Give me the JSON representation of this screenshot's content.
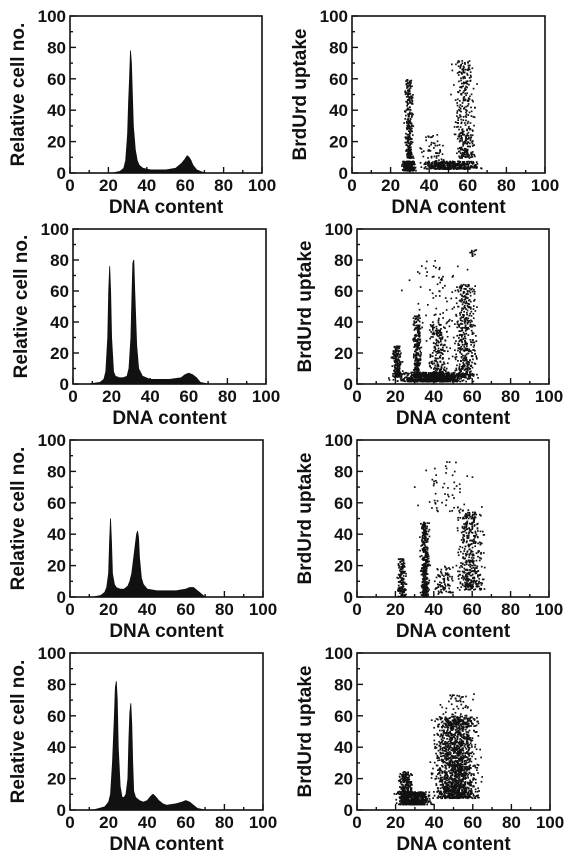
{
  "colors": {
    "ink": "#111111",
    "background": "#ffffff"
  },
  "chart_data": [
    {
      "panel": "row1-histogram",
      "type": "area",
      "xlabel": "DNA content",
      "ylabel": "Relative cell no.",
      "xlim": [
        0,
        100
      ],
      "ylim": [
        0,
        100
      ],
      "xticks": [
        "0",
        "20",
        "40",
        "60",
        "80",
        "100"
      ],
      "yticks": [
        "0",
        "20",
        "40",
        "60",
        "80",
        "100"
      ],
      "series": [
        {
          "x": [
            0,
            10,
            22,
            26,
            28,
            29,
            30,
            30.5,
            31,
            31.5,
            32,
            32.5,
            33,
            34,
            35,
            36,
            38,
            42,
            50,
            55,
            58,
            60,
            61,
            62,
            63,
            64,
            66,
            70,
            80,
            100
          ],
          "values": [
            0,
            0,
            0,
            1,
            3,
            8,
            25,
            45,
            60,
            78,
            70,
            50,
            30,
            15,
            8,
            5,
            3,
            2,
            2,
            3,
            6,
            9,
            11,
            10,
            8,
            5,
            2,
            0,
            0,
            0
          ]
        }
      ]
    },
    {
      "panel": "row1-scatter",
      "type": "scatter",
      "xlabel": "DNA content",
      "ylabel": "BrdUrd uptake",
      "xlim": [
        0,
        100
      ],
      "ylim": [
        0,
        100
      ],
      "xticks": [
        "0",
        "20",
        "40",
        "60",
        "80",
        "100"
      ],
      "yticks": [
        "0",
        "20",
        "40",
        "60",
        "80",
        "100"
      ],
      "clusters": [
        {
          "x": [
            25,
            33
          ],
          "y": [
            2,
            8
          ],
          "n": 420
        },
        {
          "x": [
            26,
            32
          ],
          "y": [
            10,
            60
          ],
          "n": 260
        },
        {
          "x": [
            32,
            70
          ],
          "y": [
            3,
            8
          ],
          "n": 380
        },
        {
          "x": [
            50,
            66
          ],
          "y": [
            10,
            72
          ],
          "n": 320
        },
        {
          "x": [
            33,
            50
          ],
          "y": [
            6,
            25
          ],
          "n": 60
        }
      ]
    },
    {
      "panel": "row2-histogram",
      "type": "area",
      "xlabel": "DNA content",
      "ylabel": "Relative cell no.",
      "xlim": [
        0,
        100
      ],
      "ylim": [
        0,
        100
      ],
      "xticks": [
        "0",
        "20",
        "40",
        "60",
        "80",
        "100"
      ],
      "yticks": [
        "0",
        "20",
        "40",
        "60",
        "80",
        "100"
      ],
      "series": [
        {
          "x": [
            0,
            8,
            14,
            16,
            17,
            18,
            18.5,
            19,
            19.5,
            20,
            21,
            22,
            24,
            26,
            28,
            29,
            30,
            30.5,
            31,
            31.5,
            32,
            33,
            34,
            36,
            40,
            50,
            56,
            58,
            60,
            62,
            64,
            66,
            70,
            80,
            100
          ],
          "values": [
            0,
            0,
            1,
            3,
            8,
            30,
            60,
            76,
            60,
            30,
            8,
            5,
            4,
            4,
            5,
            10,
            30,
            55,
            78,
            80,
            60,
            25,
            10,
            5,
            3,
            3,
            4,
            6,
            7,
            6,
            4,
            1,
            0,
            0,
            0
          ]
        }
      ]
    },
    {
      "panel": "row2-scatter",
      "type": "scatter",
      "xlabel": "DNA content",
      "ylabel": "BrdUrd uptake",
      "xlim": [
        0,
        100
      ],
      "ylim": [
        0,
        100
      ],
      "xticks": [
        "0",
        "20",
        "40",
        "60",
        "80",
        "100"
      ],
      "yticks": [
        "0",
        "20",
        "40",
        "60",
        "80",
        "100"
      ],
      "clusters": [
        {
          "x": [
            14,
            64
          ],
          "y": [
            2,
            8
          ],
          "n": 700
        },
        {
          "x": [
            17,
            24
          ],
          "y": [
            5,
            25
          ],
          "n": 160
        },
        {
          "x": [
            28,
            34
          ],
          "y": [
            5,
            45
          ],
          "n": 260
        },
        {
          "x": [
            34,
            50
          ],
          "y": [
            5,
            40
          ],
          "n": 220
        },
        {
          "x": [
            48,
            64
          ],
          "y": [
            5,
            65
          ],
          "n": 420
        },
        {
          "x": [
            22,
            60
          ],
          "y": [
            40,
            80
          ],
          "n": 70
        },
        {
          "x": [
            58,
            62
          ],
          "y": [
            83,
            87
          ],
          "n": 12
        }
      ]
    },
    {
      "panel": "row3-histogram",
      "type": "area",
      "xlabel": "DNA content",
      "ylabel": "Relative cell no.",
      "xlim": [
        0,
        100
      ],
      "ylim": [
        0,
        100
      ],
      "xticks": [
        "0",
        "20",
        "40",
        "60",
        "80",
        "100"
      ],
      "yticks": [
        "0",
        "20",
        "40",
        "60",
        "80",
        "100"
      ],
      "series": [
        {
          "x": [
            0,
            12,
            16,
            18,
            19,
            20,
            20.5,
            21,
            21.5,
            22,
            23,
            24,
            26,
            28,
            30,
            31,
            32,
            33,
            34,
            34.5,
            35,
            35.5,
            36,
            37,
            38,
            40,
            45,
            50,
            55,
            60,
            62,
            64,
            66,
            70,
            80,
            100
          ],
          "values": [
            0,
            0,
            1,
            3,
            6,
            15,
            35,
            50,
            35,
            15,
            8,
            6,
            5,
            5,
            7,
            10,
            15,
            25,
            35,
            40,
            42,
            38,
            25,
            12,
            8,
            5,
            4,
            4,
            4,
            5,
            6,
            6,
            4,
            0,
            0,
            0
          ]
        }
      ]
    },
    {
      "panel": "row3-scatter",
      "type": "scatter",
      "xlabel": "DNA content",
      "ylabel": "BrdUrd uptake",
      "xlim": [
        0,
        100
      ],
      "ylim": [
        0,
        100
      ],
      "xticks": [
        "0",
        "20",
        "40",
        "60",
        "80",
        "100"
      ],
      "yticks": [
        "0",
        "20",
        "40",
        "60",
        "80",
        "100"
      ],
      "clusters": [
        {
          "x": [
            20,
            26
          ],
          "y": [
            0,
            25
          ],
          "n": 160
        },
        {
          "x": [
            32,
            38
          ],
          "y": [
            0,
            48
          ],
          "n": 380
        },
        {
          "x": [
            38,
            52
          ],
          "y": [
            2,
            20
          ],
          "n": 80
        },
        {
          "x": [
            50,
            68
          ],
          "y": [
            5,
            55
          ],
          "n": 420
        },
        {
          "x": [
            25,
            68
          ],
          "y": [
            55,
            88
          ],
          "n": 60
        }
      ]
    },
    {
      "panel": "row4-histogram",
      "type": "area",
      "xlabel": "DNA content",
      "ylabel": "Relative cell no.",
      "xlim": [
        0,
        100
      ],
      "ylim": [
        0,
        100
      ],
      "xticks": [
        "0",
        "20",
        "40",
        "60",
        "80",
        "100"
      ],
      "yticks": [
        "0",
        "20",
        "40",
        "60",
        "80",
        "100"
      ],
      "series": [
        {
          "x": [
            0,
            12,
            18,
            20,
            21,
            22,
            23,
            23.5,
            24,
            24.5,
            25,
            26,
            27,
            28,
            29,
            30,
            30.5,
            31,
            31.5,
            32,
            32.5,
            33,
            34,
            36,
            38,
            40,
            42,
            43,
            44,
            46,
            48,
            50,
            55,
            58,
            60,
            62,
            64,
            66,
            70,
            80,
            100
          ],
          "values": [
            0,
            0,
            2,
            5,
            10,
            30,
            60,
            78,
            82,
            70,
            40,
            15,
            8,
            8,
            10,
            20,
            45,
            62,
            68,
            55,
            30,
            12,
            8,
            6,
            5,
            6,
            9,
            10,
            9,
            6,
            4,
            3,
            4,
            5,
            6,
            5,
            3,
            1,
            0,
            0,
            0
          ]
        }
      ]
    },
    {
      "panel": "row4-scatter",
      "type": "scatter",
      "xlabel": "DNA content",
      "ylabel": "BrdUrd uptake",
      "xlim": [
        0,
        100
      ],
      "ylim": [
        0,
        100
      ],
      "xticks": [
        "0",
        "20",
        "40",
        "60",
        "80",
        "100"
      ],
      "yticks": [
        "0",
        "20",
        "40",
        "60",
        "80",
        "100"
      ],
      "clusters": [
        {
          "x": [
            18,
            40
          ],
          "y": [
            4,
            12
          ],
          "n": 550
        },
        {
          "x": [
            20,
            30
          ],
          "y": [
            8,
            25
          ],
          "n": 220
        },
        {
          "x": [
            36,
            66
          ],
          "y": [
            8,
            60
          ],
          "n": 1500
        },
        {
          "x": [
            40,
            66
          ],
          "y": [
            55,
            75
          ],
          "n": 80
        }
      ]
    }
  ]
}
